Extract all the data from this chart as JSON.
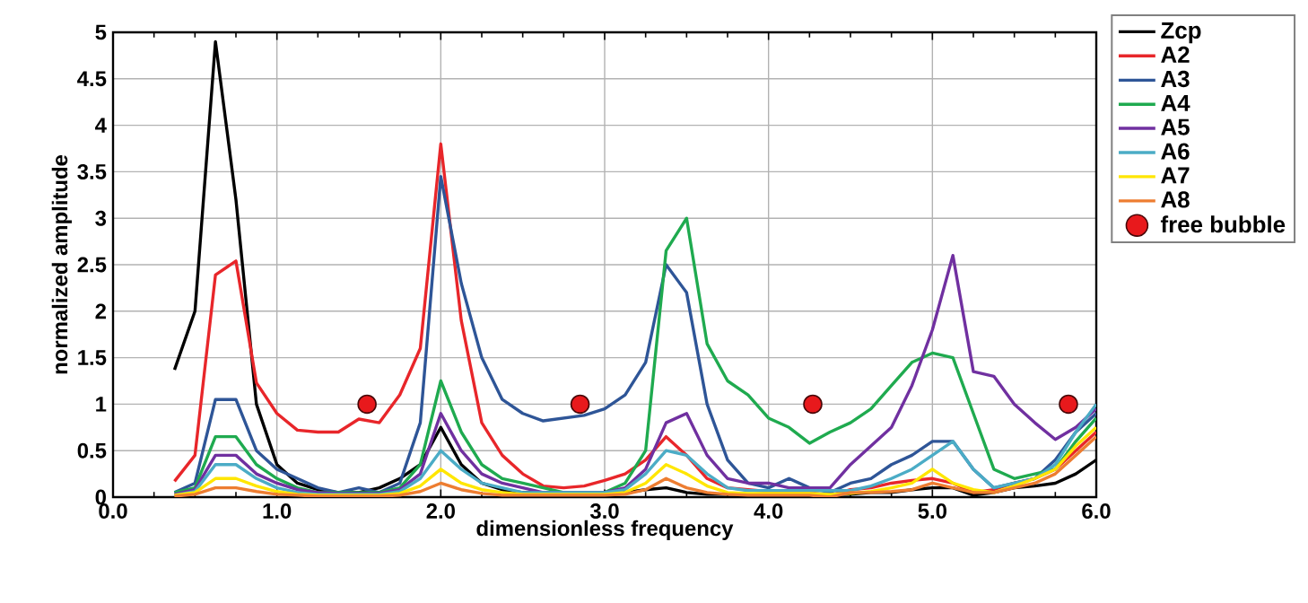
{
  "chart_data": {
    "type": "line",
    "xlabel": "dimensionless frequency",
    "ylabel": "normalized amplitude",
    "x": [
      0.375,
      0.5,
      0.625,
      0.75,
      0.875,
      1.0,
      1.125,
      1.25,
      1.375,
      1.5,
      1.625,
      1.75,
      1.875,
      2.0,
      2.125,
      2.25,
      2.375,
      2.5,
      2.625,
      2.75,
      2.875,
      3.0,
      3.125,
      3.25,
      3.375,
      3.5,
      3.625,
      3.75,
      3.875,
      4.0,
      4.125,
      4.25,
      4.375,
      4.5,
      4.625,
      4.75,
      4.875,
      5.0,
      5.125,
      5.25,
      5.375,
      5.5,
      5.625,
      5.75,
      5.875,
      6.0
    ],
    "series": [
      {
        "name": "Zcp",
        "color": "#000000",
        "values": [
          1.37,
          2.0,
          4.9,
          3.2,
          1.0,
          0.35,
          0.15,
          0.08,
          0.05,
          0.05,
          0.1,
          0.2,
          0.35,
          0.75,
          0.35,
          0.15,
          0.08,
          0.05,
          0.05,
          0.05,
          0.05,
          0.05,
          0.05,
          0.08,
          0.1,
          0.05,
          0.03,
          0.03,
          0.03,
          0.03,
          0.03,
          0.03,
          0.03,
          0.03,
          0.05,
          0.05,
          0.08,
          0.1,
          0.1,
          0.02,
          0.05,
          0.1,
          0.12,
          0.15,
          0.25,
          0.4
        ]
      },
      {
        "name": "A2",
        "color": "#e8262a",
        "values": [
          0.17,
          0.45,
          2.39,
          2.54,
          1.23,
          0.9,
          0.72,
          0.7,
          0.7,
          0.84,
          0.8,
          1.1,
          1.6,
          3.8,
          1.9,
          0.8,
          0.45,
          0.25,
          0.12,
          0.1,
          0.12,
          0.18,
          0.25,
          0.4,
          0.65,
          0.45,
          0.2,
          0.1,
          0.08,
          0.06,
          0.05,
          0.05,
          0.02,
          0.08,
          0.1,
          0.15,
          0.18,
          0.2,
          0.15,
          0.05,
          0.08,
          0.15,
          0.2,
          0.3,
          0.5,
          0.7
        ]
      },
      {
        "name": "A3",
        "color": "#2e5597",
        "values": [
          0.05,
          0.15,
          1.05,
          1.05,
          0.5,
          0.3,
          0.2,
          0.1,
          0.05,
          0.1,
          0.05,
          0.15,
          0.8,
          3.45,
          2.3,
          1.5,
          1.05,
          0.9,
          0.82,
          0.85,
          0.88,
          0.95,
          1.1,
          1.45,
          2.5,
          2.2,
          1.0,
          0.4,
          0.15,
          0.1,
          0.2,
          0.1,
          0.05,
          0.15,
          0.2,
          0.35,
          0.45,
          0.6,
          0.6,
          0.3,
          0.1,
          0.15,
          0.2,
          0.4,
          0.7,
          0.9
        ]
      },
      {
        "name": "A4",
        "color": "#1faa4f",
        "values": [
          0.05,
          0.1,
          0.65,
          0.65,
          0.35,
          0.2,
          0.1,
          0.05,
          0.05,
          0.05,
          0.05,
          0.1,
          0.35,
          1.25,
          0.7,
          0.35,
          0.2,
          0.15,
          0.1,
          0.05,
          0.05,
          0.05,
          0.15,
          0.5,
          2.65,
          3.0,
          1.65,
          1.25,
          1.1,
          0.85,
          0.75,
          0.58,
          0.7,
          0.8,
          0.95,
          1.2,
          1.45,
          1.55,
          1.5,
          0.9,
          0.3,
          0.2,
          0.25,
          0.3,
          0.6,
          0.85
        ]
      },
      {
        "name": "A5",
        "color": "#7030a0",
        "values": [
          0.03,
          0.08,
          0.45,
          0.45,
          0.25,
          0.15,
          0.08,
          0.05,
          0.04,
          0.04,
          0.04,
          0.08,
          0.25,
          0.9,
          0.5,
          0.25,
          0.15,
          0.1,
          0.05,
          0.05,
          0.05,
          0.05,
          0.1,
          0.3,
          0.8,
          0.9,
          0.45,
          0.2,
          0.15,
          0.15,
          0.1,
          0.1,
          0.1,
          0.35,
          0.55,
          0.75,
          1.2,
          1.8,
          2.6,
          1.35,
          1.3,
          1.0,
          0.8,
          0.62,
          0.75,
          0.95
        ]
      },
      {
        "name": "A6",
        "color": "#4bacc6",
        "values": [
          0.02,
          0.06,
          0.35,
          0.35,
          0.2,
          0.1,
          0.05,
          0.03,
          0.03,
          0.03,
          0.03,
          0.06,
          0.2,
          0.5,
          0.3,
          0.15,
          0.1,
          0.05,
          0.05,
          0.05,
          0.05,
          0.05,
          0.08,
          0.25,
          0.5,
          0.45,
          0.25,
          0.1,
          0.07,
          0.07,
          0.07,
          0.07,
          0.07,
          0.07,
          0.12,
          0.2,
          0.3,
          0.45,
          0.6,
          0.3,
          0.1,
          0.15,
          0.2,
          0.35,
          0.7,
          1.0
        ]
      },
      {
        "name": "A7",
        "color": "#ffe600",
        "values": [
          0.02,
          0.05,
          0.2,
          0.2,
          0.12,
          0.06,
          0.03,
          0.02,
          0.02,
          0.02,
          0.02,
          0.04,
          0.12,
          0.3,
          0.15,
          0.08,
          0.05,
          0.03,
          0.03,
          0.03,
          0.03,
          0.03,
          0.05,
          0.15,
          0.35,
          0.25,
          0.12,
          0.05,
          0.04,
          0.04,
          0.04,
          0.04,
          0.03,
          0.04,
          0.06,
          0.1,
          0.15,
          0.3,
          0.15,
          0.08,
          0.05,
          0.12,
          0.2,
          0.3,
          0.55,
          0.75
        ]
      },
      {
        "name": "A8",
        "color": "#ed7d31",
        "values": [
          0.01,
          0.03,
          0.1,
          0.1,
          0.06,
          0.03,
          0.02,
          0.01,
          0.01,
          0.01,
          0.01,
          0.02,
          0.06,
          0.15,
          0.08,
          0.04,
          0.02,
          0.02,
          0.02,
          0.02,
          0.02,
          0.02,
          0.03,
          0.08,
          0.2,
          0.1,
          0.05,
          0.03,
          0.02,
          0.02,
          0.02,
          0.02,
          0.0,
          0.05,
          0.05,
          0.06,
          0.08,
          0.15,
          0.1,
          0.05,
          0.05,
          0.1,
          0.15,
          0.25,
          0.45,
          0.65
        ]
      },
      {
        "name": "free bubble",
        "type": "scatter",
        "color": "#e8191c",
        "x": [
          1.55,
          2.85,
          4.27,
          5.83
        ],
        "values": [
          1,
          1,
          1,
          1
        ]
      }
    ],
    "xlim": [
      0,
      6
    ],
    "xticks": [
      {
        "value": 0,
        "label": "0.0"
      },
      {
        "value": 1,
        "label": "1.0"
      },
      {
        "value": 2,
        "label": "2.0"
      },
      {
        "value": 3,
        "label": "3.0"
      },
      {
        "value": 4,
        "label": "4.0"
      },
      {
        "value": 5,
        "label": "5.0"
      },
      {
        "value": 6,
        "label": "6.0"
      }
    ],
    "ylim": [
      0,
      5
    ],
    "yticks": [
      0,
      0.5,
      1,
      1.5,
      2,
      2.5,
      3,
      3.5,
      4,
      4.5,
      5
    ],
    "grid": true,
    "legend": "top right"
  }
}
